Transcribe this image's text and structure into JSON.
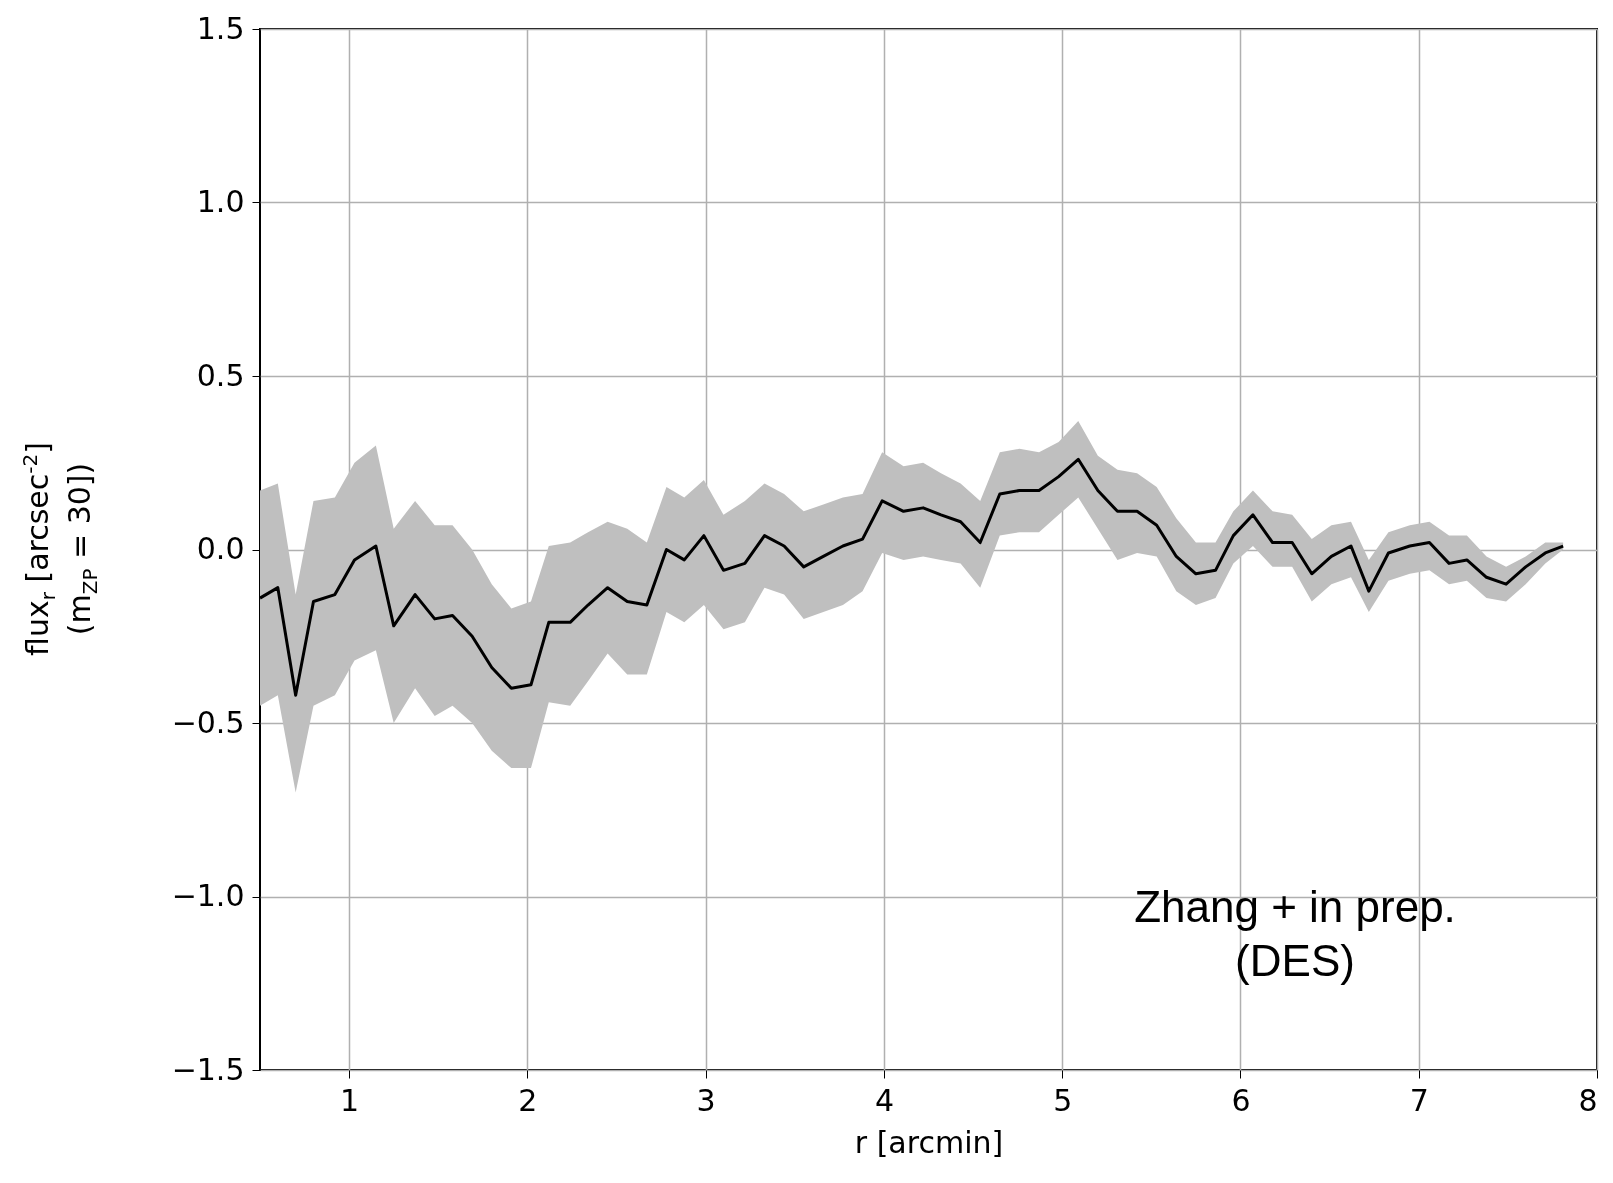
{
  "chart_data": {
    "type": "line",
    "xlabel": "r [arcmin]",
    "ylabel": "flux$_{r}$ [arcsec$^{-2}$]\n(m$_{ZP}$ = 30])",
    "annotations": [
      "Zhang + in prep.\n(DES)"
    ],
    "xlim": [
      0.5,
      8
    ],
    "xticks": [
      1,
      2,
      3,
      4,
      5,
      6,
      7,
      8
    ],
    "ylim": [
      -1.5,
      1.5
    ],
    "yticks": [
      {
        "value": -1.5,
        "label": "−1.5"
      },
      {
        "value": -1,
        "label": "−1.0"
      },
      {
        "value": -0.5,
        "label": "−0.5"
      },
      {
        "value": 0,
        "label": "0.0"
      },
      {
        "value": 0.5,
        "label": "0.5"
      },
      {
        "value": 1,
        "label": "1.0"
      },
      {
        "value": 1.5,
        "label": "1.5"
      }
    ],
    "grid": true,
    "x": [
      0.5,
      0.6,
      0.7,
      0.8,
      0.92,
      1.03,
      1.15,
      1.25,
      1.37,
      1.48,
      1.58,
      1.69,
      1.8,
      1.91,
      2.02,
      2.12,
      2.24,
      2.34,
      2.45,
      2.56,
      2.67,
      2.78,
      2.88,
      2.99,
      3.1,
      3.22,
      3.33,
      3.44,
      3.55,
      3.66,
      3.77,
      3.88,
      3.99,
      4.11,
      4.22,
      4.32,
      4.43,
      4.54,
      4.65,
      4.76,
      4.87,
      4.98,
      5.09,
      5.2,
      5.31,
      5.42,
      5.53,
      5.64,
      5.75,
      5.86,
      5.96,
      6.07,
      6.18,
      6.29,
      6.4,
      6.51,
      6.62,
      6.72,
      6.83,
      6.95,
      7.06,
      7.17,
      7.27,
      7.38,
      7.49,
      7.6,
      7.71,
      7.81
    ],
    "series": [
      {
        "color": "#000000",
        "values": [
          -0.14,
          -0.11,
          -0.42,
          -0.15,
          -0.13,
          -0.03,
          0.01,
          -0.22,
          -0.13,
          -0.2,
          -0.19,
          -0.25,
          -0.34,
          -0.4,
          -0.39,
          -0.21,
          -0.21,
          -0.16,
          -0.11,
          -0.15,
          -0.16,
          0.0,
          -0.03,
          0.04,
          -0.06,
          -0.04,
          0.04,
          0.01,
          -0.05,
          -0.02,
          0.01,
          0.03,
          0.14,
          0.11,
          0.12,
          0.1,
          0.08,
          0.02,
          0.16,
          0.17,
          0.17,
          0.21,
          0.26,
          0.17,
          0.11,
          0.11,
          0.07,
          -0.02,
          -0.07,
          -0.06,
          0.04,
          0.1,
          0.02,
          0.02,
          -0.07,
          -0.02,
          0.01,
          -0.12,
          -0.01,
          0.01,
          0.02,
          -0.04,
          -0.03,
          -0.08,
          -0.1,
          -0.05,
          -0.01,
          0.01
        ],
        "upper": [
          0.17,
          0.19,
          -0.13,
          0.14,
          0.15,
          0.25,
          0.3,
          0.06,
          0.14,
          0.07,
          0.07,
          0.0,
          -0.1,
          -0.17,
          -0.15,
          0.01,
          0.02,
          0.05,
          0.08,
          0.06,
          0.02,
          0.18,
          0.15,
          0.2,
          0.1,
          0.14,
          0.19,
          0.16,
          0.11,
          0.13,
          0.15,
          0.16,
          0.28,
          0.24,
          0.25,
          0.22,
          0.19,
          0.14,
          0.28,
          0.29,
          0.28,
          0.31,
          0.37,
          0.27,
          0.23,
          0.22,
          0.18,
          0.09,
          0.02,
          0.02,
          0.11,
          0.17,
          0.11,
          0.1,
          0.03,
          0.07,
          0.08,
          -0.03,
          0.05,
          0.07,
          0.08,
          0.04,
          0.04,
          -0.02,
          -0.05,
          -0.02,
          0.02,
          0.02
        ],
        "lower": [
          -0.45,
          -0.42,
          -0.7,
          -0.45,
          -0.42,
          -0.32,
          -0.29,
          -0.5,
          -0.4,
          -0.48,
          -0.45,
          -0.5,
          -0.58,
          -0.63,
          -0.63,
          -0.44,
          -0.45,
          -0.38,
          -0.3,
          -0.36,
          -0.36,
          -0.18,
          -0.21,
          -0.16,
          -0.23,
          -0.21,
          -0.11,
          -0.13,
          -0.2,
          -0.18,
          -0.16,
          -0.12,
          -0.01,
          -0.03,
          -0.02,
          -0.03,
          -0.04,
          -0.11,
          0.04,
          0.05,
          0.05,
          0.1,
          0.15,
          0.06,
          -0.03,
          -0.01,
          -0.02,
          -0.12,
          -0.16,
          -0.14,
          -0.04,
          0.01,
          -0.05,
          -0.05,
          -0.15,
          -0.1,
          -0.08,
          -0.18,
          -0.09,
          -0.07,
          -0.06,
          -0.1,
          -0.09,
          -0.14,
          -0.15,
          -0.1,
          -0.04,
          0.0
        ]
      }
    ]
  }
}
